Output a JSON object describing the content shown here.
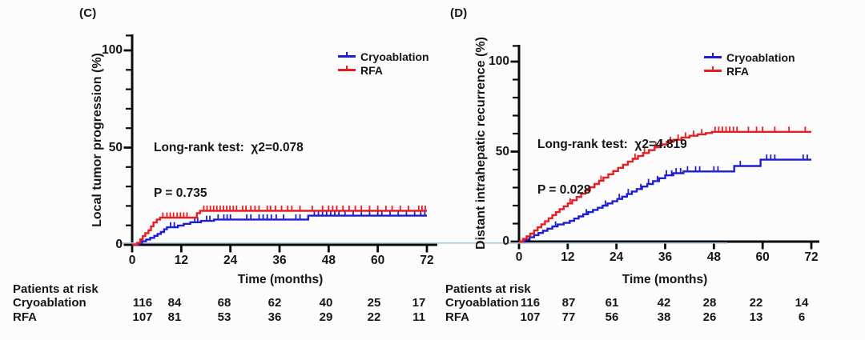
{
  "figure": {
    "background": "#fcfcfc",
    "text_color": "#161616",
    "colors": {
      "cryoablation": "#1d1dd8",
      "rfa": "#ea1c22",
      "axis": "#0a0a0a",
      "zero_overlay_line": "#a5c9e3"
    }
  },
  "chart_data": [
    {
      "type": "line",
      "subtype": "kaplan-meier-step-curve",
      "panel_label": "(C)",
      "title": "",
      "ylabel": "Local tumor progression (%)",
      "xlabel": "Time (months)",
      "xlim": [
        0,
        72
      ],
      "ylim": [
        0,
        100
      ],
      "xticks": [
        "0",
        "12",
        "24",
        "36",
        "48",
        "60",
        "72"
      ],
      "yticks": [
        "0",
        "50",
        "100"
      ],
      "grid": false,
      "legend_position": "top-right-inside",
      "stats": {
        "line1": "Long-rank test:  χ2=0.078",
        "line2": "P = 0.735"
      },
      "series": [
        {
          "name": "Cryoablation",
          "color": "#1d1dd8",
          "steps": [
            [
              0,
              0
            ],
            [
              1.6,
              0.9
            ],
            [
              2.4,
              1.8
            ],
            [
              3.4,
              2.7
            ],
            [
              4.4,
              3.6
            ],
            [
              5.4,
              4.6
            ],
            [
              6.2,
              5.6
            ],
            [
              7,
              6.6
            ],
            [
              7.8,
              8
            ],
            [
              8.5,
              9
            ],
            [
              11.2,
              9.9
            ],
            [
              12.6,
              10.8
            ],
            [
              14.2,
              11.6
            ],
            [
              16.8,
              12.3
            ],
            [
              20,
              13
            ],
            [
              43,
              15
            ],
            [
              72,
              15
            ]
          ],
          "censor_marks": [
            9.4,
            10.3,
            15.3,
            16,
            18.2,
            19,
            21,
            22.4,
            23.2,
            24,
            28,
            29,
            31,
            32,
            33,
            34,
            35.2,
            37,
            40,
            41,
            44.5,
            45.5,
            46.5,
            47.5,
            48.5,
            49.5,
            50.5,
            52,
            54,
            56,
            58,
            60,
            61,
            63,
            65,
            67,
            69,
            70.5,
            71.5
          ]
        },
        {
          "name": "RFA",
          "color": "#ea1c22",
          "steps": [
            [
              0,
              0
            ],
            [
              1.2,
              1
            ],
            [
              2,
              2.8
            ],
            [
              2.6,
              4.5
            ],
            [
              3.2,
              6
            ],
            [
              4,
              7.5
            ],
            [
              4.6,
              9.5
            ],
            [
              5.2,
              11.5
            ],
            [
              6,
              13
            ],
            [
              6.8,
              14
            ],
            [
              15.8,
              16.3
            ],
            [
              16.6,
              17.5
            ],
            [
              72,
              17.5
            ]
          ],
          "censor_marks": [
            7.5,
            8.5,
            9.3,
            10.1,
            11,
            11.8,
            12.6,
            13.4,
            17.5,
            18.3,
            19.1,
            19.9,
            20.7,
            21.5,
            22.3,
            23.1,
            23.9,
            24.7,
            25.5,
            27,
            27.8,
            29,
            30,
            31,
            33,
            33.8,
            35,
            36.5,
            38,
            39,
            41,
            44,
            46.5,
            48,
            49,
            50,
            51.5,
            53,
            54.5,
            56,
            58,
            60,
            62,
            63.5,
            65.5,
            67.5,
            70,
            70.8,
            71.6
          ]
        }
      ],
      "risk_table": {
        "title": "Patients at risk",
        "rows": [
          {
            "label": "Cryoablation",
            "values": [
              "116",
              "84",
              "68",
              "62",
              "40",
              "25",
              "17"
            ]
          },
          {
            "label": "RFA",
            "values": [
              "107",
              "81",
              "53",
              "36",
              "29",
              "22",
              "11"
            ]
          }
        ]
      }
    },
    {
      "type": "line",
      "subtype": "kaplan-meier-step-curve",
      "panel_label": "(D)",
      "title": "",
      "ylabel": "Distant intrahepatic recurrence (%)",
      "xlabel": "Time (months)",
      "xlim": [
        0,
        72
      ],
      "ylim": [
        0,
        100
      ],
      "xticks": [
        "0",
        "12",
        "24",
        "36",
        "48",
        "60",
        "72"
      ],
      "yticks": [
        "0",
        "50",
        "100"
      ],
      "grid": false,
      "legend_position": "top-right-inside",
      "stats": {
        "line1": "Long-rank test:  χ2=4.819",
        "line2": "P = 0.028"
      },
      "series": [
        {
          "name": "Cryoablation",
          "color": "#1d1dd8",
          "steps": [
            [
              0,
              0
            ],
            [
              1.5,
              1.2
            ],
            [
              2.6,
              2.4
            ],
            [
              3.7,
              3.6
            ],
            [
              4.8,
              4.8
            ],
            [
              5.9,
              6
            ],
            [
              7,
              7.2
            ],
            [
              8.2,
              8.4
            ],
            [
              9.5,
              9.5
            ],
            [
              11,
              10.4
            ],
            [
              12.5,
              11.5
            ],
            [
              13.6,
              12.8
            ],
            [
              14.7,
              14
            ],
            [
              15.8,
              15.2
            ],
            [
              17,
              16.4
            ],
            [
              18.2,
              17.6
            ],
            [
              19.4,
              18.8
            ],
            [
              20.6,
              20
            ],
            [
              21.8,
              21.2
            ],
            [
              23,
              22.4
            ],
            [
              24.2,
              23.7
            ],
            [
              25.4,
              25
            ],
            [
              26.6,
              26.4
            ],
            [
              27.8,
              27.8
            ],
            [
              29,
              29.2
            ],
            [
              30.3,
              30.6
            ],
            [
              31.6,
              32
            ],
            [
              33,
              33.6
            ],
            [
              34.5,
              35.2
            ],
            [
              36,
              36.8
            ],
            [
              38,
              38
            ],
            [
              40.5,
              39
            ],
            [
              53,
              42
            ],
            [
              59.5,
              45.5
            ],
            [
              72,
              45.5
            ]
          ],
          "censor_marks": [
            9,
            16.6,
            21.3,
            24.7,
            26.9,
            30,
            31.9,
            34.1,
            36.3,
            37.6,
            38.7,
            39.8,
            41.5,
            43.5,
            44.5,
            48,
            49,
            54.5,
            61,
            62,
            63,
            70,
            71
          ]
        },
        {
          "name": "RFA",
          "color": "#ea1c22",
          "steps": [
            [
              0,
              0
            ],
            [
              1,
              1.5
            ],
            [
              1.9,
              3
            ],
            [
              2.8,
              4.5
            ],
            [
              3.7,
              6.2
            ],
            [
              4.6,
              7.9
            ],
            [
              5.5,
              9.6
            ],
            [
              6.4,
              11.3
            ],
            [
              7.3,
              13
            ],
            [
              8.2,
              14.7
            ],
            [
              9.1,
              16.4
            ],
            [
              10,
              18
            ],
            [
              11,
              19.6
            ],
            [
              12,
              21.2
            ],
            [
              13.1,
              23
            ],
            [
              14.2,
              24.8
            ],
            [
              15.3,
              26.6
            ],
            [
              16.4,
              28.4
            ],
            [
              17.5,
              30.2
            ],
            [
              18.6,
              32
            ],
            [
              19.7,
              33.8
            ],
            [
              20.8,
              35.6
            ],
            [
              22,
              37.4
            ],
            [
              23.2,
              39.2
            ],
            [
              24.4,
              41
            ],
            [
              25.6,
              42.7
            ],
            [
              26.8,
              44.4
            ],
            [
              28,
              46
            ],
            [
              29.3,
              47.6
            ],
            [
              30.6,
              49.2
            ],
            [
              32,
              50.8
            ],
            [
              33.4,
              52.4
            ],
            [
              34.8,
              54
            ],
            [
              36.4,
              55.4
            ],
            [
              38,
              56.6
            ],
            [
              40,
              57.8
            ],
            [
              42,
              58.8
            ],
            [
              44,
              59.6
            ],
            [
              46,
              60.3
            ],
            [
              47.5,
              61
            ],
            [
              72,
              61
            ]
          ],
          "censor_marks": [
            12.6,
            20.2,
            28.6,
            30.9,
            33.7,
            35.1,
            37.3,
            39.2,
            41,
            43,
            45,
            48.3,
            49.2,
            50.1,
            51,
            51.9,
            52.8,
            53.7,
            56.5,
            58.5,
            60,
            63,
            66.5,
            70.5
          ]
        }
      ],
      "risk_table": {
        "title": "Patients at risk",
        "rows": [
          {
            "label": "Cryoablation",
            "values": [
              "116",
              "87",
              "61",
              "42",
              "28",
              "22",
              "14"
            ]
          },
          {
            "label": "RFA",
            "values": [
              "107",
              "77",
              "56",
              "38",
              "26",
              "13",
              "6"
            ]
          }
        ]
      }
    }
  ]
}
